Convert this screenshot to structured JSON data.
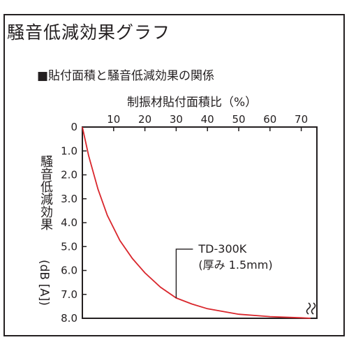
{
  "title": "騒音低減効果グラフ",
  "chart_data": {
    "type": "line",
    "title": "■貼付面積と騒音低減効果の関係",
    "xlabel": "制振材貼付面積比（%）",
    "ylabel": "騒音低減効果",
    "yunit": "(dB [A])",
    "x_ticks": [
      "10",
      "20",
      "30",
      "40",
      "50",
      "60",
      "70"
    ],
    "y_ticks": [
      "0",
      "1.0",
      "2.0",
      "3.0",
      "4.0",
      "5.0",
      "6.0",
      "7.0",
      "8.0"
    ],
    "xlim": [
      0,
      75
    ],
    "ylim": [
      0,
      8
    ],
    "y_inverted": true,
    "grid": false,
    "line_color": "#d9262c",
    "series": [
      {
        "x": [
          0,
          2,
          5,
          8,
          12,
          16,
          20,
          25,
          30,
          35,
          40,
          50,
          60,
          70,
          73
        ],
        "y": [
          0,
          1.2,
          2.6,
          3.7,
          4.75,
          5.5,
          6.1,
          6.7,
          7.15,
          7.4,
          7.6,
          7.83,
          7.93,
          7.98,
          8.0
        ]
      }
    ],
    "annotation": {
      "line1": "TD-300K",
      "line2": "(厚み 1.5mm)",
      "x": 30,
      "y": 7.15
    }
  }
}
